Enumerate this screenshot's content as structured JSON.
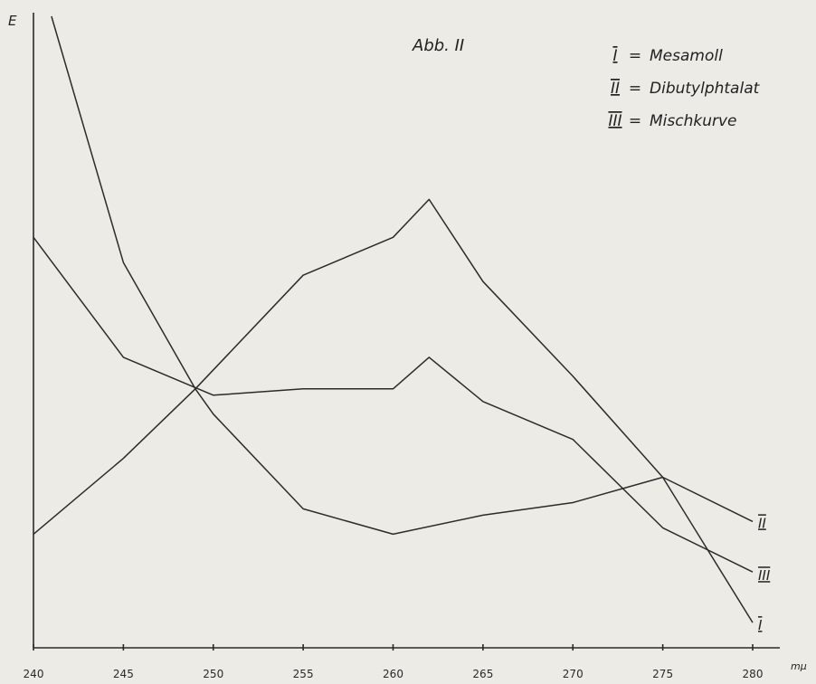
{
  "chart_data": {
    "type": "line",
    "title": "Abb. II",
    "ylabel": "E",
    "xlabel": "mμ",
    "xlim": [
      240,
      280
    ],
    "ylim": [
      0,
      100
    ],
    "x_ticks": [
      240,
      245,
      250,
      255,
      260,
      265,
      270,
      275,
      280
    ],
    "grid": false,
    "legend_position": "top-right",
    "legend": [
      {
        "key": "I",
        "separator": "=",
        "label": "Mesamoll"
      },
      {
        "key": "II",
        "separator": "=",
        "label": "Dibutylphtalat"
      },
      {
        "key": "III",
        "separator": "=",
        "label": "Mischkurve"
      }
    ],
    "series": [
      {
        "name": "I",
        "x": [
          241,
          245,
          249,
          250,
          255,
          260,
          265,
          270,
          275,
          280
        ],
        "y": [
          100,
          61,
          41,
          37,
          22,
          18,
          21,
          23,
          27,
          4
        ]
      },
      {
        "name": "II",
        "x": [
          240,
          245,
          249,
          255,
          260,
          262,
          265,
          270,
          275,
          280
        ],
        "y": [
          18,
          30,
          41,
          59,
          65,
          71,
          58,
          43,
          27,
          20
        ]
      },
      {
        "name": "III",
        "x": [
          240,
          245,
          250,
          255,
          260,
          262,
          265,
          270,
          275,
          280
        ],
        "y": [
          65,
          46,
          40,
          41,
          41,
          46,
          39,
          33,
          19,
          12
        ]
      }
    ]
  }
}
